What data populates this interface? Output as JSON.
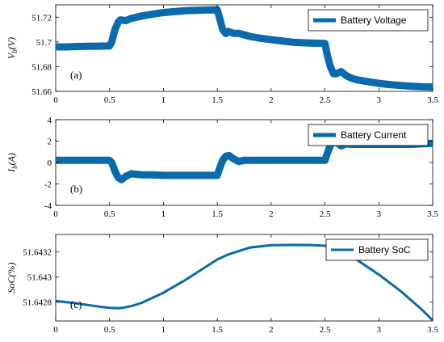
{
  "colors": {
    "series": "#0a6aad",
    "axis": "#000000",
    "frame": "#000000"
  },
  "chart_data": [
    {
      "type": "line",
      "panel_label": "(a)",
      "ylabel": "V_b(V)",
      "ylabel_main": "V",
      "ylabel_sub": "b",
      "ylabel_unit": "(V)",
      "xlim": [
        0,
        3.5
      ],
      "ylim": [
        51.66,
        51.73
      ],
      "xticks": [
        "0",
        "0.5",
        "1",
        "1.5",
        "2",
        "2.5",
        "3",
        "3.5"
      ],
      "xtick_values": [
        0,
        0.5,
        1,
        1.5,
        2,
        2.5,
        3,
        3.5
      ],
      "yticks": [
        "51.66",
        "51.68",
        "51.7",
        "51.72"
      ],
      "ytick_values": [
        51.66,
        51.68,
        51.7,
        51.72
      ],
      "legend_position": "top-right",
      "series": [
        {
          "name": "Battery Voltage",
          "x": [
            0,
            0.1,
            0.2,
            0.3,
            0.4,
            0.5,
            0.52,
            0.55,
            0.58,
            0.6,
            0.65,
            0.7,
            0.75,
            0.8,
            0.9,
            1.0,
            1.1,
            1.2,
            1.3,
            1.4,
            1.5,
            1.52,
            1.55,
            1.58,
            1.6,
            1.65,
            1.7,
            1.8,
            1.9,
            2.0,
            2.1,
            2.2,
            2.3,
            2.4,
            2.5,
            2.52,
            2.55,
            2.58,
            2.6,
            2.65,
            2.7,
            2.75,
            2.8,
            2.9,
            3.0,
            3.1,
            3.2,
            3.3,
            3.4,
            3.5
          ],
          "y": [
            51.696,
            51.696,
            51.6963,
            51.6965,
            51.6966,
            51.6967,
            51.7,
            51.71,
            51.716,
            51.7178,
            51.7172,
            51.719,
            51.72,
            51.721,
            51.7225,
            51.7238,
            51.7245,
            51.7252,
            51.7256,
            51.7258,
            51.726,
            51.72,
            51.71,
            51.7068,
            51.7085,
            51.707,
            51.707,
            51.7045,
            51.703,
            51.7018,
            51.7008,
            51.6998,
            51.6993,
            51.699,
            51.6987,
            51.69,
            51.68,
            51.6743,
            51.6742,
            51.676,
            51.6725,
            51.6705,
            51.6693,
            51.6678,
            51.6665,
            51.6655,
            51.6648,
            51.6642,
            51.6638,
            51.6636
          ]
        }
      ]
    },
    {
      "type": "line",
      "panel_label": "(b)",
      "ylabel": "I_b(A)",
      "ylabel_main": "I",
      "ylabel_sub": "b",
      "ylabel_unit": "(A)",
      "xlim": [
        0,
        3.5
      ],
      "ylim": [
        -4,
        4
      ],
      "xticks": [
        "0",
        "0.5",
        "1",
        "1.5",
        "2",
        "2.5",
        "3",
        "3.5"
      ],
      "xtick_values": [
        0,
        0.5,
        1,
        1.5,
        2,
        2.5,
        3,
        3.5
      ],
      "yticks": [
        "-4",
        "-2",
        "0",
        "2",
        "4"
      ],
      "ytick_values": [
        -4,
        -2,
        0,
        2,
        4
      ],
      "legend_position": "top-right",
      "series": [
        {
          "name": "Battery Current",
          "x": [
            0,
            0.5,
            0.52,
            0.55,
            0.58,
            0.61,
            0.65,
            0.7,
            0.75,
            0.8,
            0.9,
            1.0,
            1.5,
            1.52,
            1.55,
            1.58,
            1.61,
            1.65,
            1.7,
            1.75,
            2.0,
            2.5,
            2.52,
            2.55,
            2.58,
            2.61,
            2.65,
            2.7,
            2.75,
            3.0,
            3.3,
            3.5
          ],
          "y": [
            0.2,
            0.2,
            0.0,
            -0.8,
            -1.4,
            -1.6,
            -1.3,
            -1.05,
            -1.1,
            -1.15,
            -1.15,
            -1.2,
            -1.2,
            -0.6,
            0.2,
            0.6,
            0.65,
            0.35,
            0.1,
            0.2,
            0.2,
            0.2,
            0.8,
            1.6,
            1.9,
            1.85,
            1.55,
            1.75,
            1.7,
            1.7,
            1.7,
            1.8
          ]
        }
      ]
    },
    {
      "type": "line",
      "panel_label": "(c)",
      "ylabel": "SoC(%)",
      "xlim": [
        0,
        3.5
      ],
      "ylim": [
        51.64265,
        51.64334
      ],
      "xticks": [
        "0",
        "0.5",
        "1",
        "1.5",
        "2",
        "2.5",
        "3",
        "3.5"
      ],
      "xtick_values": [
        0,
        0.5,
        1,
        1.5,
        2,
        2.5,
        3,
        3.5
      ],
      "yticks": [
        "51.6428",
        "51.643",
        "51.6432"
      ],
      "ytick_values": [
        51.6428,
        51.643,
        51.6432
      ],
      "legend_position": "top-right",
      "series": [
        {
          "name": "Battery SoC",
          "x": [
            0,
            0.2,
            0.4,
            0.5,
            0.6,
            0.7,
            0.8,
            1.0,
            1.2,
            1.4,
            1.5,
            1.6,
            1.8,
            2.0,
            2.2,
            2.4,
            2.5,
            2.6,
            2.8,
            3.0,
            3.2,
            3.4,
            3.5
          ],
          "y": [
            51.64281,
            51.64279,
            51.642765,
            51.642755,
            51.642752,
            51.642768,
            51.642795,
            51.642875,
            51.642975,
            51.643085,
            51.64314,
            51.64318,
            51.643235,
            51.643255,
            51.643257,
            51.643255,
            51.64325,
            51.643225,
            51.643135,
            51.64302,
            51.64289,
            51.64274,
            51.642655
          ]
        }
      ]
    }
  ]
}
